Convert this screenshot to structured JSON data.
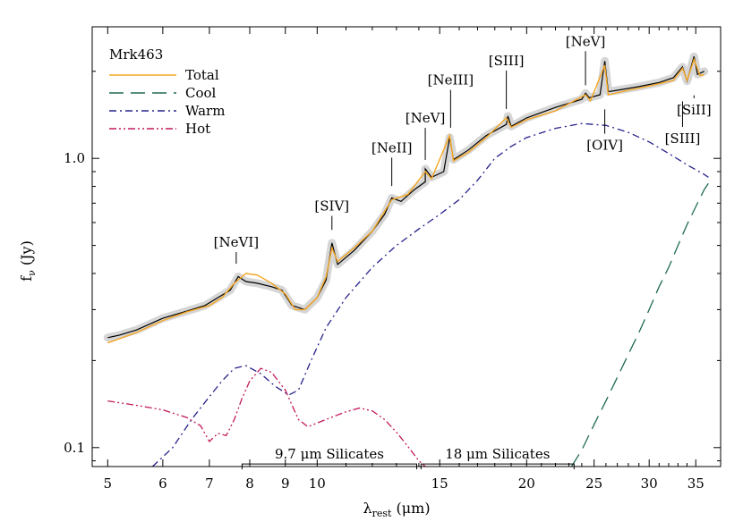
{
  "chart_data": {
    "type": "line",
    "title": "Mrk463",
    "xlabel": "λ_rest (μm)",
    "ylabel": "f_ν (Jy)",
    "xscale": "log",
    "yscale": "log",
    "xlim": [
      4.75,
      38
    ],
    "ylim": [
      0.086,
      2.85
    ],
    "xticks": [
      5,
      6,
      7,
      8,
      9,
      10,
      15,
      20,
      25,
      30,
      35
    ],
    "yticks": [
      0.1,
      1.0
    ],
    "ytick_labels": [
      "0.1",
      "1.0"
    ],
    "legend": {
      "position": "top-left",
      "entries": [
        {
          "name": "Total",
          "color": "#f5a623",
          "dash": "solid"
        },
        {
          "name": "Cool",
          "color": "#1e6b4e",
          "dash": "long-dash"
        },
        {
          "name": "Warm",
          "color": "#26228a",
          "dash": "dash-dot"
        },
        {
          "name": "Hot",
          "color": "#c2185b",
          "dash": "dash-dot-dot"
        }
      ]
    },
    "observed": {
      "name": "observed",
      "color": "#000000",
      "points": [
        [
          5.0,
          0.24
        ],
        [
          5.2,
          0.245
        ],
        [
          5.5,
          0.255
        ],
        [
          5.8,
          0.27
        ],
        [
          6.0,
          0.28
        ],
        [
          6.3,
          0.29
        ],
        [
          6.6,
          0.3
        ],
        [
          6.9,
          0.31
        ],
        [
          7.2,
          0.33
        ],
        [
          7.5,
          0.35
        ],
        [
          7.7,
          0.39
        ],
        [
          7.9,
          0.375
        ],
        [
          8.2,
          0.37
        ],
        [
          8.6,
          0.36
        ],
        [
          8.9,
          0.35
        ],
        [
          9.2,
          0.31
        ],
        [
          9.6,
          0.3
        ],
        [
          10.0,
          0.33
        ],
        [
          10.3,
          0.38
        ],
        [
          10.5,
          0.51
        ],
        [
          10.7,
          0.43
        ],
        [
          11.3,
          0.48
        ],
        [
          12.0,
          0.56
        ],
        [
          12.5,
          0.64
        ],
        [
          12.8,
          0.73
        ],
        [
          13.2,
          0.71
        ],
        [
          13.8,
          0.78
        ],
        [
          14.3,
          0.83
        ],
        [
          14.3,
          0.92
        ],
        [
          14.6,
          0.86
        ],
        [
          15.2,
          0.9
        ],
        [
          15.5,
          1.18
        ],
        [
          15.7,
          0.99
        ],
        [
          16.5,
          1.07
        ],
        [
          17.5,
          1.2
        ],
        [
          18.7,
          1.31
        ],
        [
          18.8,
          1.4
        ],
        [
          19.0,
          1.29
        ],
        [
          20.0,
          1.38
        ],
        [
          22.0,
          1.5
        ],
        [
          24.0,
          1.6
        ],
        [
          24.3,
          1.68
        ],
        [
          24.6,
          1.62
        ],
        [
          25.5,
          1.66
        ],
        [
          25.9,
          2.17
        ],
        [
          26.2,
          1.7
        ],
        [
          27.0,
          1.72
        ],
        [
          29.0,
          1.77
        ],
        [
          31.0,
          1.83
        ],
        [
          32.5,
          1.9
        ],
        [
          33.5,
          2.07
        ],
        [
          34.0,
          1.85
        ],
        [
          34.8,
          2.25
        ],
        [
          35.2,
          1.95
        ],
        [
          36.0,
          2.0
        ]
      ]
    },
    "series": [
      {
        "name": "Total",
        "color": "#f5a623",
        "points": [
          [
            5.0,
            0.23
          ],
          [
            5.5,
            0.25
          ],
          [
            6.0,
            0.275
          ],
          [
            6.5,
            0.295
          ],
          [
            7.0,
            0.31
          ],
          [
            7.3,
            0.33
          ],
          [
            7.6,
            0.37
          ],
          [
            7.9,
            0.4
          ],
          [
            8.2,
            0.395
          ],
          [
            8.6,
            0.37
          ],
          [
            9.0,
            0.34
          ],
          [
            9.3,
            0.3
          ],
          [
            9.6,
            0.3
          ],
          [
            10.0,
            0.33
          ],
          [
            10.3,
            0.39
          ],
          [
            10.5,
            0.49
          ],
          [
            10.7,
            0.44
          ],
          [
            11.3,
            0.49
          ],
          [
            12.0,
            0.56
          ],
          [
            12.8,
            0.72
          ],
          [
            13.5,
            0.75
          ],
          [
            14.3,
            0.9
          ],
          [
            14.6,
            0.85
          ],
          [
            15.5,
            1.2
          ],
          [
            15.7,
            0.98
          ],
          [
            16.5,
            1.05
          ],
          [
            17.5,
            1.18
          ],
          [
            18.7,
            1.38
          ],
          [
            19.0,
            1.28
          ],
          [
            20.0,
            1.36
          ],
          [
            22.0,
            1.46
          ],
          [
            24.3,
            1.66
          ],
          [
            24.7,
            1.58
          ],
          [
            25.9,
            2.1
          ],
          [
            26.2,
            1.66
          ],
          [
            28.0,
            1.72
          ],
          [
            30.0,
            1.78
          ],
          [
            32.5,
            1.86
          ],
          [
            33.5,
            2.05
          ],
          [
            34.0,
            1.86
          ],
          [
            34.8,
            2.2
          ],
          [
            35.5,
            1.93
          ],
          [
            36.0,
            1.95
          ]
        ]
      },
      {
        "name": "Cool",
        "color": "#1e6b4e",
        "points": [
          [
            23.2,
            0.086
          ],
          [
            24.0,
            0.098
          ],
          [
            25.0,
            0.12
          ],
          [
            26.0,
            0.145
          ],
          [
            27.0,
            0.175
          ],
          [
            28.0,
            0.21
          ],
          [
            29.0,
            0.25
          ],
          [
            30.0,
            0.3
          ],
          [
            31.0,
            0.36
          ],
          [
            32.0,
            0.42
          ],
          [
            33.0,
            0.5
          ],
          [
            34.0,
            0.59
          ],
          [
            35.0,
            0.68
          ],
          [
            36.0,
            0.78
          ],
          [
            36.5,
            0.82
          ]
        ]
      },
      {
        "name": "Warm",
        "color": "#26228a",
        "points": [
          [
            5.8,
            0.086
          ],
          [
            6.2,
            0.1
          ],
          [
            6.6,
            0.125
          ],
          [
            7.0,
            0.15
          ],
          [
            7.3,
            0.17
          ],
          [
            7.6,
            0.188
          ],
          [
            7.9,
            0.192
          ],
          [
            8.3,
            0.18
          ],
          [
            8.7,
            0.163
          ],
          [
            9.1,
            0.152
          ],
          [
            9.4,
            0.158
          ],
          [
            9.8,
            0.2
          ],
          [
            10.3,
            0.26
          ],
          [
            11.0,
            0.33
          ],
          [
            12.0,
            0.42
          ],
          [
            13.0,
            0.5
          ],
          [
            14.0,
            0.57
          ],
          [
            15.0,
            0.64
          ],
          [
            16.0,
            0.72
          ],
          [
            17.0,
            0.84
          ],
          [
            18.0,
            1.0
          ],
          [
            19.0,
            1.1
          ],
          [
            20.0,
            1.18
          ],
          [
            22.0,
            1.27
          ],
          [
            24.0,
            1.32
          ],
          [
            26.0,
            1.3
          ],
          [
            28.0,
            1.23
          ],
          [
            30.0,
            1.14
          ],
          [
            32.0,
            1.04
          ],
          [
            34.0,
            0.95
          ],
          [
            36.0,
            0.88
          ],
          [
            36.5,
            0.86
          ]
        ]
      },
      {
        "name": "Hot",
        "color": "#c2185b",
        "points": [
          [
            5.0,
            0.145
          ],
          [
            5.5,
            0.14
          ],
          [
            6.0,
            0.135
          ],
          [
            6.5,
            0.127
          ],
          [
            6.8,
            0.119
          ],
          [
            7.0,
            0.105
          ],
          [
            7.2,
            0.112
          ],
          [
            7.4,
            0.11
          ],
          [
            7.6,
            0.125
          ],
          [
            7.8,
            0.148
          ],
          [
            8.0,
            0.17
          ],
          [
            8.3,
            0.188
          ],
          [
            8.6,
            0.182
          ],
          [
            9.0,
            0.158
          ],
          [
            9.4,
            0.125
          ],
          [
            9.7,
            0.118
          ],
          [
            10.2,
            0.124
          ],
          [
            11.0,
            0.133
          ],
          [
            11.5,
            0.137
          ],
          [
            12.0,
            0.134
          ],
          [
            12.5,
            0.125
          ],
          [
            13.0,
            0.113
          ],
          [
            13.5,
            0.101
          ],
          [
            14.0,
            0.09
          ],
          [
            14.3,
            0.086
          ]
        ]
      }
    ],
    "line_labels": [
      {
        "text": "[NeVI]",
        "x": 7.65,
        "y_tip": 0.42,
        "y_text": 0.495,
        "side": "above"
      },
      {
        "text": "[SIV]",
        "x": 10.5,
        "y_tip": 0.55,
        "y_text": 0.66,
        "side": "above"
      },
      {
        "text": "[NeII]",
        "x": 12.8,
        "y_tip": 0.78,
        "y_text": 1.05,
        "side": "above"
      },
      {
        "text": "[NeV]",
        "x": 14.3,
        "y_tip": 0.96,
        "y_text": 1.33,
        "side": "above"
      },
      {
        "text": "[NeIII]",
        "x": 15.55,
        "y_tip": 1.24,
        "y_text": 1.8,
        "side": "above"
      },
      {
        "text": "[SIII]",
        "x": 18.7,
        "y_tip": 1.44,
        "y_text": 2.1,
        "side": "above"
      },
      {
        "text": "[NeV]",
        "x": 24.3,
        "y_tip": 1.74,
        "y_text": 2.45,
        "side": "above"
      },
      {
        "text": "[OIV]",
        "x": 25.9,
        "y_tip": 1.52,
        "y_text": 1.07,
        "side": "below"
      },
      {
        "text": "[SIII]",
        "x": 33.5,
        "y_tip": 1.62,
        "y_text": 1.13,
        "side": "below"
      },
      {
        "text": "[SiII]",
        "x": 34.8,
        "y_tip": 1.7,
        "y_text": 1.42,
        "side": "below"
      }
    ],
    "annotations": [
      {
        "text": "9.7 μm Silicates",
        "x_start": 7.8,
        "x_end": 13.9,
        "y": 0.097
      },
      {
        "text": "18 μm Silicates",
        "x_start": 14.1,
        "x_end": 23.4,
        "y": 0.097
      }
    ]
  }
}
